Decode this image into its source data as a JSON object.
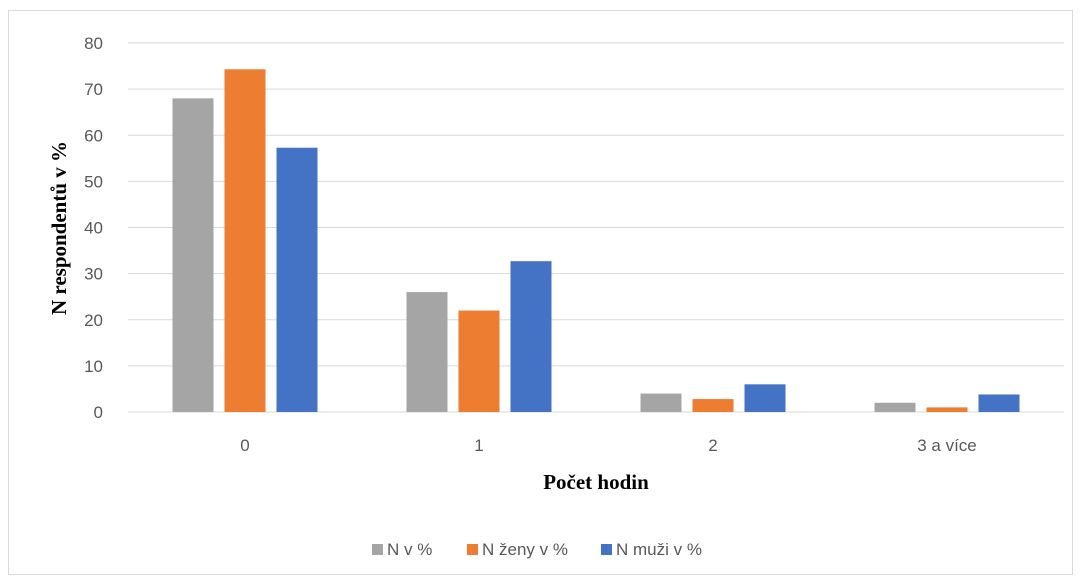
{
  "chart_data": {
    "type": "bar",
    "title": "",
    "xlabel": "Počet hodin",
    "ylabel": "N respondentů v %",
    "categories": [
      "0",
      "1",
      "2",
      "3 a více"
    ],
    "ylim": [
      0,
      80
    ],
    "yticks": [
      0,
      10,
      20,
      30,
      40,
      50,
      60,
      70,
      80
    ],
    "grid": true,
    "legend_position": "bottom",
    "series": [
      {
        "name": "N v %",
        "color": "#a5a5a5",
        "values": [
          68,
          26,
          4,
          2
        ]
      },
      {
        "name": "N ženy v %",
        "color": "#ed7d31",
        "values": [
          74.3,
          22,
          2.8,
          1
        ]
      },
      {
        "name": "N muži v %",
        "color": "#4472c4",
        "values": [
          57.3,
          32.7,
          6,
          3.8
        ]
      }
    ]
  }
}
